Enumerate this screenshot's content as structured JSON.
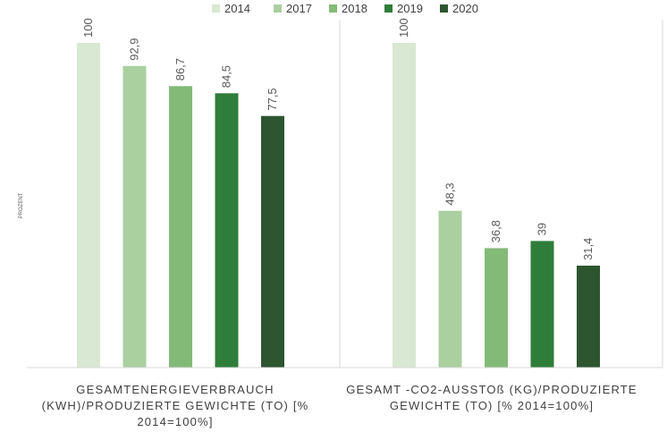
{
  "chart_data": {
    "type": "bar",
    "ylabel": "PROZENT",
    "ylim": [
      0,
      100
    ],
    "grid": false,
    "legend": "top-center",
    "categories": [
      "GESAMTENERGIEVERBRAUCH (KWH)/PRODUZIERTE GEWICHTE (TO) [% 2014=100%]",
      "GESAMT -CO2-AUSSTOß (KG)/PRODUZIERTE GEWICHTE (TO) [% 2014=100%]"
    ],
    "category_lines": [
      [
        "GESAMTENERGIEVERBRAUCH",
        "(KWH)/PRODUZIERTE GEWICHTE (TO) [%",
        "2014=100%]"
      ],
      [
        "GESAMT -CO2-AUSSTOß (KG)/PRODUZIERTE",
        "GEWICHTE (TO) [% 2014=100%]"
      ]
    ],
    "series": [
      {
        "name": "2014",
        "color": "#d9e8d2",
        "values": [
          100,
          100
        ],
        "labels": [
          "100",
          "100"
        ]
      },
      {
        "name": "2017",
        "color": "#abd0a0",
        "values": [
          92.9,
          48.3
        ],
        "labels": [
          "92,9",
          "48,3"
        ]
      },
      {
        "name": "2018",
        "color": "#83ba78",
        "values": [
          86.7,
          36.8
        ],
        "labels": [
          "86,7",
          "36,8"
        ]
      },
      {
        "name": "2019",
        "color": "#2f7d3a",
        "values": [
          84.5,
          39
        ],
        "labels": [
          "84,5",
          "39"
        ]
      },
      {
        "name": "2020",
        "color": "#2d5530",
        "values": [
          77.5,
          31.4
        ],
        "labels": [
          "77,5",
          "31,4"
        ]
      }
    ]
  }
}
